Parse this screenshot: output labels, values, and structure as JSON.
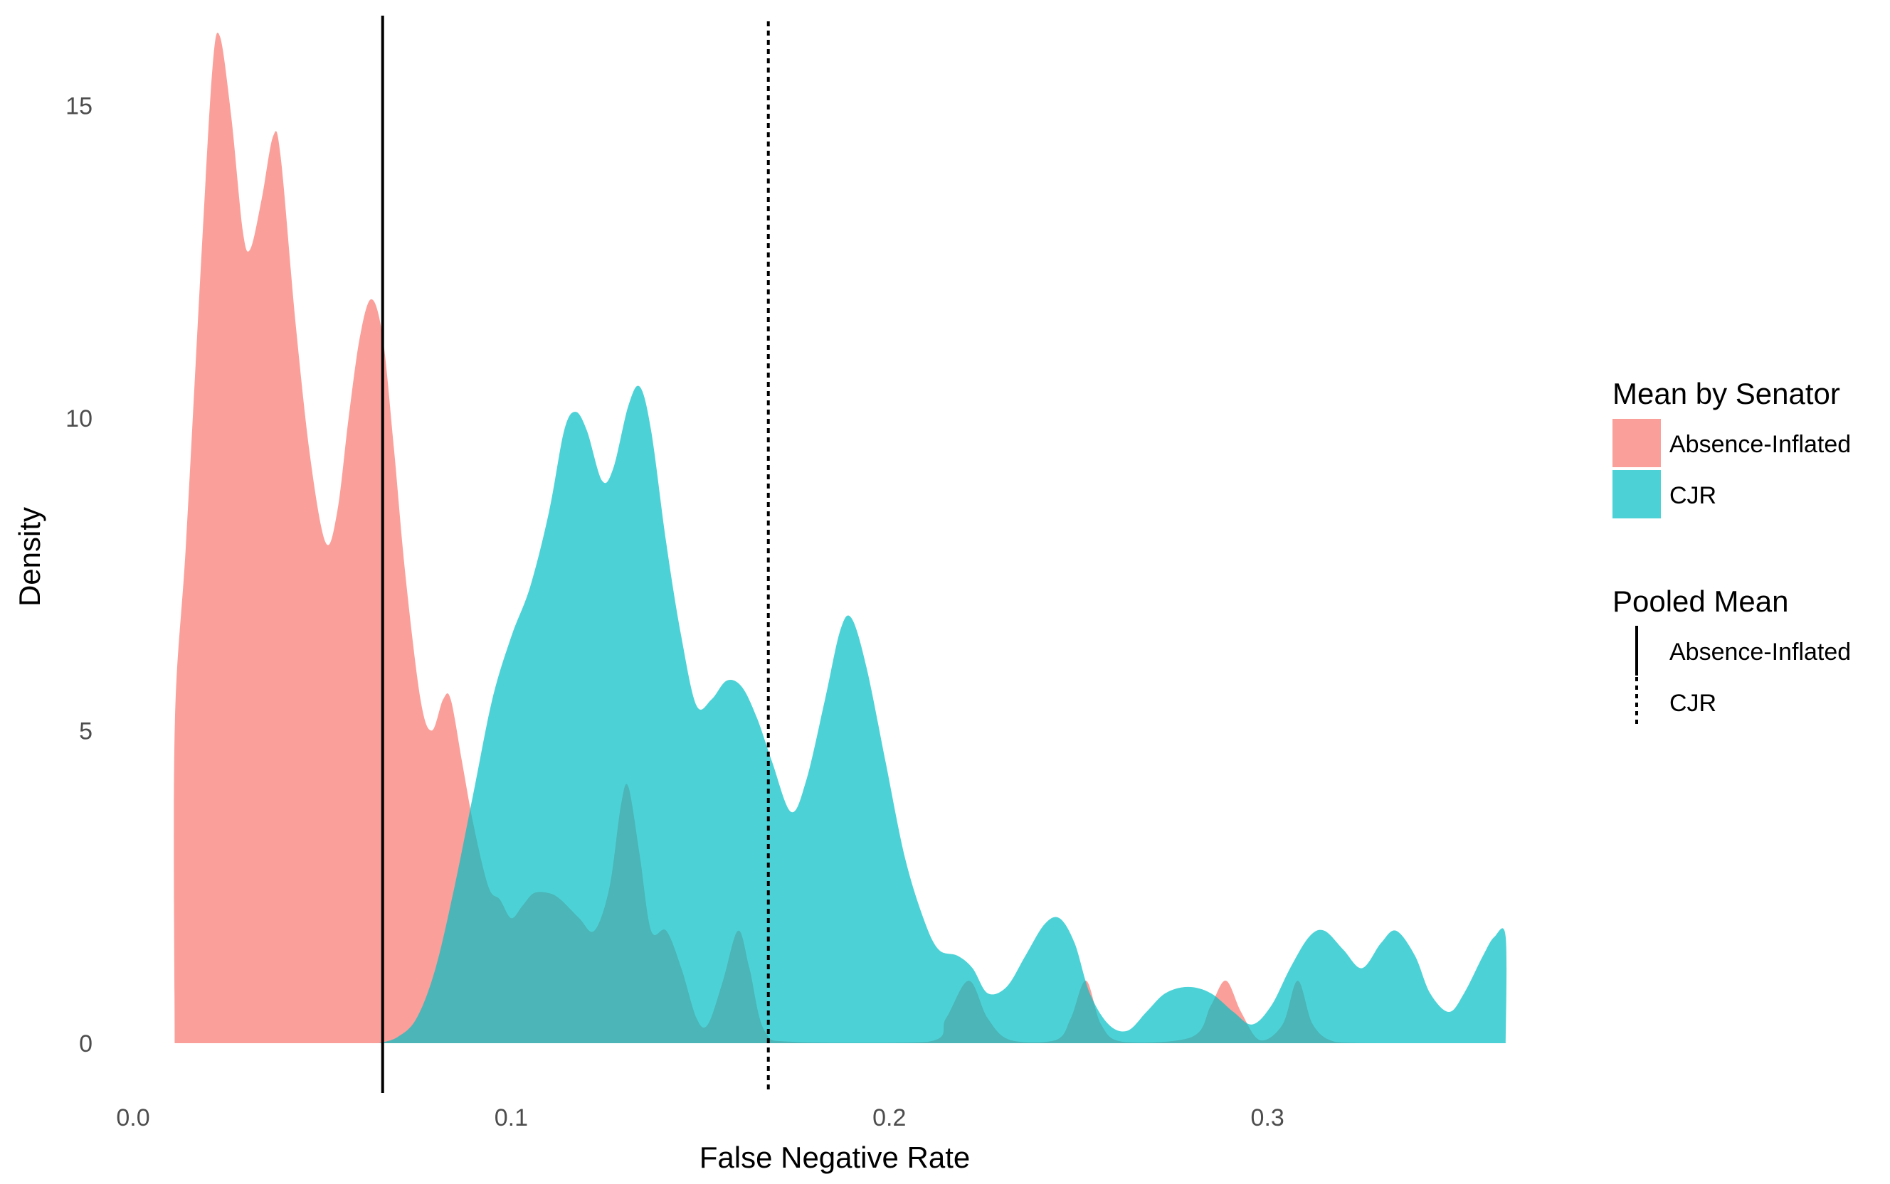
{
  "colors": {
    "absence_inflated": "#F8766D",
    "cjr": "#00BFC4",
    "mean_line": "#000000"
  },
  "chart_data": {
    "type": "area",
    "xlabel": "False Negative Rate",
    "ylabel": "Density",
    "xlim": [
      0.0,
      0.36
    ],
    "ylim": [
      0,
      16
    ],
    "x_ticks": [
      "0.0",
      "0.1",
      "0.2",
      "0.3"
    ],
    "x_tick_values": [
      0.0,
      0.1,
      0.2,
      0.3
    ],
    "y_ticks": [
      "0",
      "5",
      "10",
      "15"
    ],
    "y_tick_values": [
      0,
      5,
      10,
      15
    ],
    "grid": false,
    "fill_opacity": 0.7,
    "series": [
      {
        "name": "Absence-Inflated",
        "color": "#F8766D",
        "points": [
          [
            0.011,
            0
          ],
          [
            0.011,
            5.0
          ],
          [
            0.014,
            8.0
          ],
          [
            0.018,
            12.5
          ],
          [
            0.021,
            15.6
          ],
          [
            0.023,
            16.1
          ],
          [
            0.026,
            14.8
          ],
          [
            0.029,
            13.0
          ],
          [
            0.031,
            12.7
          ],
          [
            0.034,
            13.5
          ],
          [
            0.037,
            14.5
          ],
          [
            0.039,
            14.2
          ],
          [
            0.043,
            11.5
          ],
          [
            0.047,
            9.3
          ],
          [
            0.051,
            8.0
          ],
          [
            0.054,
            8.5
          ],
          [
            0.057,
            10.0
          ],
          [
            0.06,
            11.3
          ],
          [
            0.063,
            11.9
          ],
          [
            0.066,
            11.3
          ],
          [
            0.069,
            9.5
          ],
          [
            0.072,
            7.5
          ],
          [
            0.076,
            5.5
          ],
          [
            0.079,
            5.0
          ],
          [
            0.082,
            5.5
          ],
          [
            0.084,
            5.5
          ],
          [
            0.087,
            4.5
          ],
          [
            0.09,
            3.5
          ],
          [
            0.094,
            2.5
          ],
          [
            0.097,
            2.3
          ],
          [
            0.1,
            2.0
          ],
          [
            0.103,
            2.2
          ],
          [
            0.106,
            2.4
          ],
          [
            0.11,
            2.4
          ],
          [
            0.113,
            2.3
          ],
          [
            0.118,
            2.0
          ],
          [
            0.122,
            1.8
          ],
          [
            0.126,
            2.5
          ],
          [
            0.129,
            3.8
          ],
          [
            0.131,
            4.1
          ],
          [
            0.134,
            3.0
          ],
          [
            0.137,
            1.8
          ],
          [
            0.141,
            1.8
          ],
          [
            0.145,
            1.2
          ],
          [
            0.149,
            0.4
          ],
          [
            0.152,
            0.3
          ],
          [
            0.156,
            1.0
          ],
          [
            0.16,
            1.8
          ],
          [
            0.163,
            1.2
          ],
          [
            0.167,
            0.2
          ],
          [
            0.175,
            0.02
          ],
          [
            0.21,
            0.02
          ],
          [
            0.215,
            0.4
          ],
          [
            0.221,
            1.0
          ],
          [
            0.226,
            0.4
          ],
          [
            0.232,
            0.05
          ],
          [
            0.244,
            0.05
          ],
          [
            0.248,
            0.4
          ],
          [
            0.252,
            1.0
          ],
          [
            0.256,
            0.3
          ],
          [
            0.262,
            0.02
          ],
          [
            0.28,
            0.1
          ],
          [
            0.285,
            0.6
          ],
          [
            0.289,
            1.0
          ],
          [
            0.293,
            0.5
          ],
          [
            0.298,
            0.05
          ],
          [
            0.304,
            0.3
          ],
          [
            0.308,
            1.0
          ],
          [
            0.312,
            0.3
          ],
          [
            0.318,
            0.02
          ],
          [
            0.33,
            0.0
          ],
          [
            0.33,
            0
          ]
        ]
      },
      {
        "name": "CJR",
        "color": "#00BFC4",
        "points": [
          [
            0.065,
            0
          ],
          [
            0.07,
            0.1
          ],
          [
            0.075,
            0.4
          ],
          [
            0.08,
            1.2
          ],
          [
            0.085,
            2.5
          ],
          [
            0.09,
            4.0
          ],
          [
            0.095,
            5.5
          ],
          [
            0.1,
            6.5
          ],
          [
            0.105,
            7.3
          ],
          [
            0.11,
            8.5
          ],
          [
            0.114,
            9.8
          ],
          [
            0.117,
            10.1
          ],
          [
            0.12,
            9.8
          ],
          [
            0.124,
            9.0
          ],
          [
            0.127,
            9.2
          ],
          [
            0.131,
            10.2
          ],
          [
            0.134,
            10.5
          ],
          [
            0.137,
            9.8
          ],
          [
            0.141,
            8.0
          ],
          [
            0.145,
            6.5
          ],
          [
            0.149,
            5.4
          ],
          [
            0.153,
            5.5
          ],
          [
            0.157,
            5.8
          ],
          [
            0.161,
            5.7
          ],
          [
            0.165,
            5.2
          ],
          [
            0.169,
            4.5
          ],
          [
            0.174,
            3.7
          ],
          [
            0.178,
            4.2
          ],
          [
            0.183,
            5.5
          ],
          [
            0.187,
            6.6
          ],
          [
            0.19,
            6.8
          ],
          [
            0.194,
            6.0
          ],
          [
            0.199,
            4.5
          ],
          [
            0.204,
            3.0
          ],
          [
            0.209,
            2.0
          ],
          [
            0.213,
            1.5
          ],
          [
            0.218,
            1.4
          ],
          [
            0.222,
            1.2
          ],
          [
            0.226,
            0.8
          ],
          [
            0.231,
            0.9
          ],
          [
            0.236,
            1.4
          ],
          [
            0.241,
            1.9
          ],
          [
            0.245,
            2.0
          ],
          [
            0.249,
            1.6
          ],
          [
            0.253,
            0.8
          ],
          [
            0.258,
            0.3
          ],
          [
            0.263,
            0.2
          ],
          [
            0.268,
            0.5
          ],
          [
            0.273,
            0.8
          ],
          [
            0.279,
            0.9
          ],
          [
            0.285,
            0.8
          ],
          [
            0.291,
            0.5
          ],
          [
            0.296,
            0.3
          ],
          [
            0.301,
            0.6
          ],
          [
            0.306,
            1.2
          ],
          [
            0.311,
            1.7
          ],
          [
            0.315,
            1.8
          ],
          [
            0.32,
            1.5
          ],
          [
            0.325,
            1.2
          ],
          [
            0.33,
            1.6
          ],
          [
            0.334,
            1.8
          ],
          [
            0.339,
            1.4
          ],
          [
            0.343,
            0.8
          ],
          [
            0.348,
            0.5
          ],
          [
            0.352,
            0.8
          ],
          [
            0.357,
            1.4
          ],
          [
            0.36,
            1.7
          ],
          [
            0.363,
            1.7
          ],
          [
            0.363,
            0
          ]
        ]
      }
    ],
    "reference_lines": [
      {
        "name": "Absence-Inflated",
        "x": 0.066,
        "linetype": "solid"
      },
      {
        "name": "CJR",
        "x": 0.168,
        "linetype": "dotted"
      }
    ],
    "legends": [
      {
        "title": "Mean by Senator",
        "entries": [
          {
            "label": "Absence-Inflated",
            "color": "#F8766D"
          },
          {
            "label": "CJR",
            "color": "#00BFC4"
          }
        ]
      },
      {
        "title": "Pooled Mean",
        "entries": [
          {
            "label": "Absence-Inflated",
            "linetype": "solid"
          },
          {
            "label": "CJR",
            "linetype": "dotted"
          }
        ]
      }
    ],
    "legend_placement": "right"
  }
}
